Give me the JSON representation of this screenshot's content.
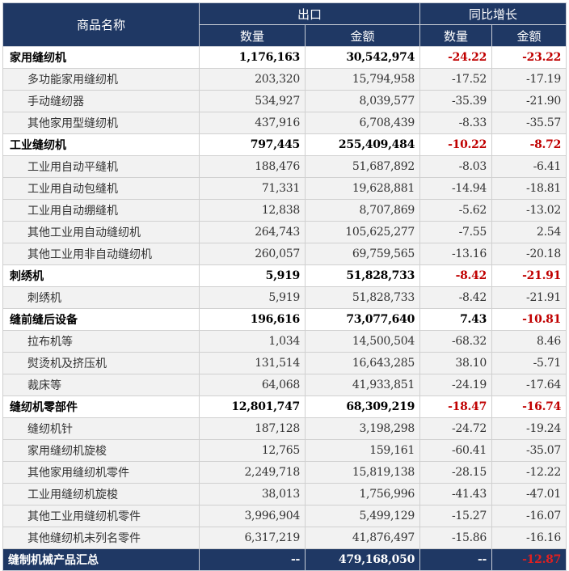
{
  "header": {
    "name_col": "商品名称",
    "export_group": "出口",
    "yoy_group": "同比增长",
    "qty": "数量",
    "amount": "金额"
  },
  "colors": {
    "header_bg": "#1f3864",
    "negative": "#c00000",
    "sub_row_bg": "#f2f2f2"
  },
  "rows": [
    {
      "type": "cat",
      "name": "家用缝纫机",
      "qty": "1,176,163",
      "amount": "30,542,974",
      "qty_yoy": "-24.22",
      "amount_yoy": "-23.22"
    },
    {
      "type": "sub",
      "name": "多功能家用缝纫机",
      "qty": "203,320",
      "amount": "15,794,958",
      "qty_yoy": "-17.52",
      "amount_yoy": "-17.19"
    },
    {
      "type": "sub",
      "name": "手动缝纫器",
      "qty": "534,927",
      "amount": "8,039,577",
      "qty_yoy": "-35.39",
      "amount_yoy": "-21.90"
    },
    {
      "type": "sub",
      "name": "其他家用型缝纫机",
      "qty": "437,916",
      "amount": "6,708,439",
      "qty_yoy": "-8.33",
      "amount_yoy": "-35.57"
    },
    {
      "type": "cat",
      "name": "工业缝纫机",
      "qty": "797,445",
      "amount": "255,409,484",
      "qty_yoy": "-10.22",
      "amount_yoy": "-8.72"
    },
    {
      "type": "sub",
      "name": "工业用自动平缝机",
      "qty": "188,476",
      "amount": "51,687,892",
      "qty_yoy": "-8.03",
      "amount_yoy": "-6.41"
    },
    {
      "type": "sub",
      "name": "工业用自动包缝机",
      "qty": "71,331",
      "amount": "19,628,881",
      "qty_yoy": "-14.94",
      "amount_yoy": "-18.81"
    },
    {
      "type": "sub",
      "name": "工业用自动绷缝机",
      "qty": "12,838",
      "amount": "8,707,869",
      "qty_yoy": "-5.62",
      "amount_yoy": "-13.02"
    },
    {
      "type": "sub",
      "name": "其他工业用自动缝纫机",
      "qty": "264,743",
      "amount": "105,625,277",
      "qty_yoy": "-7.55",
      "amount_yoy": "2.54"
    },
    {
      "type": "sub",
      "name": "其他工业用非自动缝纫机",
      "qty": "260,057",
      "amount": "69,759,565",
      "qty_yoy": "-13.16",
      "amount_yoy": "-20.18"
    },
    {
      "type": "cat",
      "name": "刺绣机",
      "qty": "5,919",
      "amount": "51,828,733",
      "qty_yoy": "-8.42",
      "amount_yoy": "-21.91"
    },
    {
      "type": "sub",
      "name": "刺绣机",
      "qty": "5,919",
      "amount": "51,828,733",
      "qty_yoy": "-8.42",
      "amount_yoy": "-21.91"
    },
    {
      "type": "cat",
      "name": "缝前缝后设备",
      "qty": "196,616",
      "amount": "73,077,640",
      "qty_yoy": "7.43",
      "amount_yoy": "-10.81"
    },
    {
      "type": "sub",
      "name": "拉布机等",
      "qty": "1,034",
      "amount": "14,500,504",
      "qty_yoy": "-68.32",
      "amount_yoy": "8.46"
    },
    {
      "type": "sub",
      "name": "熨烫机及挤压机",
      "qty": "131,514",
      "amount": "16,643,285",
      "qty_yoy": "38.10",
      "amount_yoy": "-5.71"
    },
    {
      "type": "sub",
      "name": "裁床等",
      "qty": "64,068",
      "amount": "41,933,851",
      "qty_yoy": "-24.19",
      "amount_yoy": "-17.64"
    },
    {
      "type": "cat",
      "name": "缝纫机零部件",
      "qty": "12,801,747",
      "amount": "68,309,219",
      "qty_yoy": "-18.47",
      "amount_yoy": "-16.74"
    },
    {
      "type": "sub",
      "name": "缝纫机针",
      "qty": "187,128",
      "amount": "3,198,298",
      "qty_yoy": "-24.72",
      "amount_yoy": "-19.24"
    },
    {
      "type": "sub",
      "name": "家用缝纫机旋梭",
      "qty": "12,765",
      "amount": "159,161",
      "qty_yoy": "-60.41",
      "amount_yoy": "-35.07"
    },
    {
      "type": "sub",
      "name": "其他家用缝纫机零件",
      "qty": "2,249,718",
      "amount": "15,819,138",
      "qty_yoy": "-28.15",
      "amount_yoy": "-12.22"
    },
    {
      "type": "sub",
      "name": "工业用缝纫机旋梭",
      "qty": "38,013",
      "amount": "1,756,996",
      "qty_yoy": "-41.43",
      "amount_yoy": "-47.01"
    },
    {
      "type": "sub",
      "name": "其他工业用缝纫机零件",
      "qty": "3,996,904",
      "amount": "5,499,129",
      "qty_yoy": "-15.27",
      "amount_yoy": "-16.07"
    },
    {
      "type": "sub",
      "name": "其他缝纫机未列名零件",
      "qty": "6,317,219",
      "amount": "41,876,497",
      "qty_yoy": "-15.86",
      "amount_yoy": "-16.16"
    },
    {
      "type": "total",
      "name": "缝制机械产品汇总",
      "qty": "--",
      "amount": "479,168,050",
      "qty_yoy": "--",
      "amount_yoy": "-12.87"
    }
  ]
}
